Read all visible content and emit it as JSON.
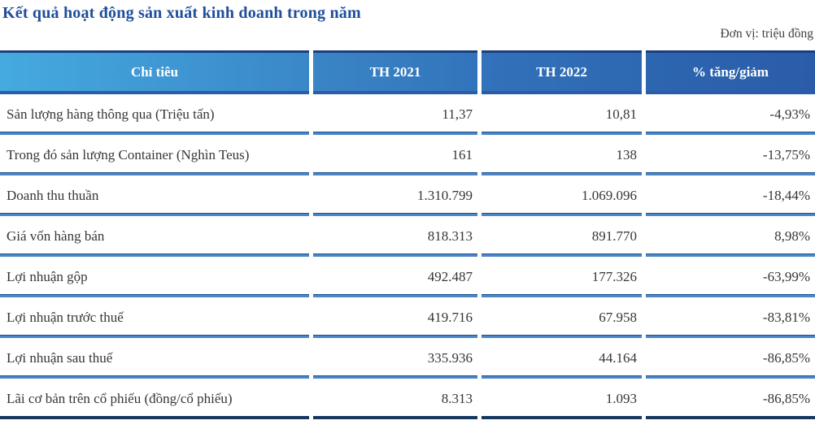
{
  "title": "Kết quả hoạt động sản xuất kinh doanh trong năm",
  "unit_note": "Đơn vị: triệu đồng",
  "table": {
    "columns": [
      "Chỉ tiêu",
      "TH 2021",
      "TH 2022",
      "% tăng/giảm"
    ],
    "rows": [
      {
        "label": "Sản lượng hàng thông qua (Triệu tấn)",
        "th2021": "11,37",
        "th2022": "10,81",
        "change": "-4,93%"
      },
      {
        "label": "Trong đó sản lượng Container (Nghìn Teus)",
        "th2021": "161",
        "th2022": "138",
        "change": "-13,75%"
      },
      {
        "label": "Doanh thu thuần",
        "th2021": "1.310.799",
        "th2022": "1.069.096",
        "change": "-18,44%"
      },
      {
        "label": "Giá vốn hàng bán",
        "th2021": "818.313",
        "th2022": "891.770",
        "change": "8,98%"
      },
      {
        "label": "Lợi nhuận gộp",
        "th2021": "492.487",
        "th2022": "177.326",
        "change": "-63,99%"
      },
      {
        "label": "Lợi nhuận trước thuế",
        "th2021": "419.716",
        "th2022": "67.958",
        "change": "-83,81%"
      },
      {
        "label": "Lợi nhuận sau thuế",
        "th2021": "335.936",
        "th2022": "44.164",
        "change": "-86,85%"
      },
      {
        "label": "Lãi cơ bản trên cổ phiếu (đồng/cổ phiếu)",
        "th2021": "8.313",
        "th2022": "1.093",
        "change": "-86,85%"
      }
    ]
  },
  "colors": {
    "title_blue": "#1F4E9C",
    "header_gradient_start": "#45AADF",
    "header_gradient_end": "#2A5CA9",
    "header_top_border": "#1B3F7E",
    "row_divider": "#4B86C6",
    "row_divider_dark": "#1F5191",
    "table_bottom_border": "#17375E",
    "body_text": "#363636"
  }
}
